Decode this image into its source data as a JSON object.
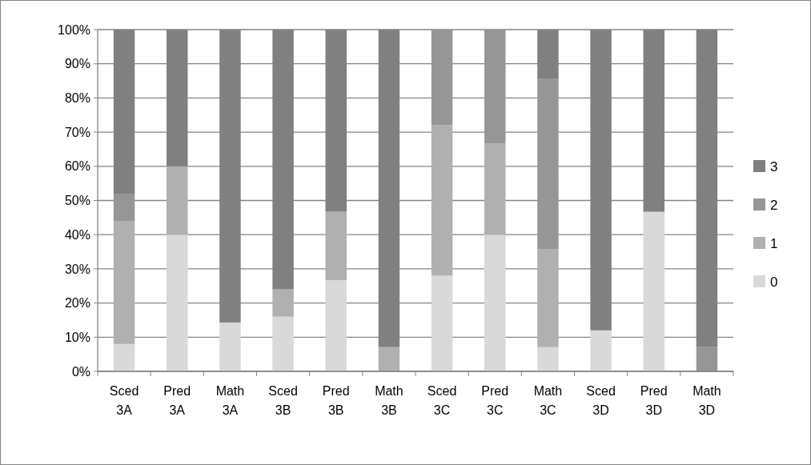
{
  "chart_data": {
    "type": "bar",
    "stacked": true,
    "categories": [
      "Sced 3A",
      "Pred 3A",
      "Math 3A",
      "Sced 3B",
      "Pred 3B",
      "Math 3B",
      "Sced 3C",
      "Pred 3C",
      "Math 3C",
      "Sced 3D",
      "Pred 3D",
      "Math 3D"
    ],
    "series": [
      {
        "name": "0",
        "color": "#d9d9d9",
        "values": [
          8,
          40,
          14.3,
          16,
          26.7,
          0,
          28,
          40,
          7.1,
          12,
          46.7,
          0
        ]
      },
      {
        "name": "1",
        "color": "#b0b0b0",
        "values": [
          36,
          20,
          0,
          8,
          20,
          7.1,
          44,
          26.7,
          28.6,
          0,
          0,
          0
        ]
      },
      {
        "name": "2",
        "color": "#969696",
        "values": [
          8,
          0,
          0,
          0,
          0,
          0,
          28,
          33.3,
          50,
          0,
          0,
          7.1
        ]
      },
      {
        "name": "3",
        "color": "#808080",
        "values": [
          48,
          40,
          85.7,
          76,
          53.3,
          92.9,
          0,
          0,
          14.3,
          88,
          53.3,
          92.9
        ]
      }
    ],
    "ylim": [
      0,
      100
    ],
    "yticks": [
      {
        "value": 0,
        "label": "0%"
      },
      {
        "value": 10,
        "label": "10%"
      },
      {
        "value": 20,
        "label": "20%"
      },
      {
        "value": 30,
        "label": "30%"
      },
      {
        "value": 40,
        "label": "40%"
      },
      {
        "value": 50,
        "label": "50%"
      },
      {
        "value": 60,
        "label": "60%"
      },
      {
        "value": 70,
        "label": "70%"
      },
      {
        "value": 80,
        "label": "80%"
      },
      {
        "value": 90,
        "label": "90%"
      },
      {
        "value": 100,
        "label": "100%"
      }
    ],
    "grid": "y",
    "legend": "right"
  }
}
